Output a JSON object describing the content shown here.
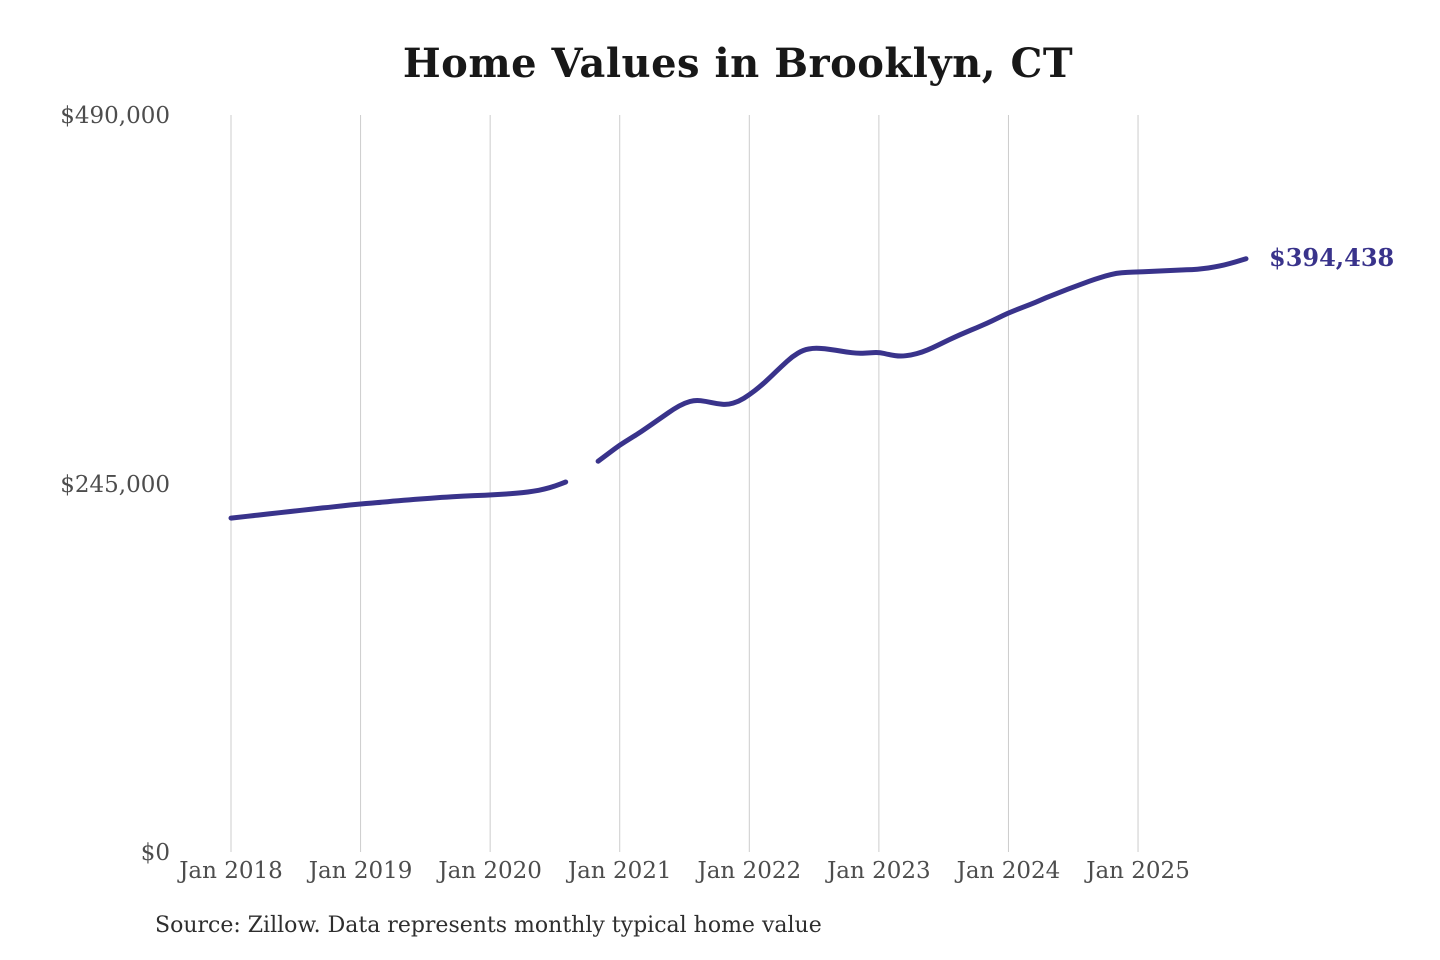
{
  "title": "Home Values in Brooklyn, CT",
  "source_note": "Source: Zillow. Data represents monthly typical home value",
  "colors": {
    "background": "#ffffff",
    "line": "#39338b",
    "grid": "#cccccc",
    "title_text": "#181818",
    "axis_text": "#4d4d4d",
    "source_text": "#2e2e2e",
    "end_label_text": "#39338b"
  },
  "chart_data": {
    "type": "line",
    "title": "Home Values in Brooklyn, CT",
    "xlabel": "",
    "ylabel": "",
    "ylim": [
      0,
      490000
    ],
    "grid": "vertical",
    "legend": "none",
    "x_ticks": [
      "Jan 2018",
      "Jan 2019",
      "Jan 2020",
      "Jan 2021",
      "Jan 2022",
      "Jan 2023",
      "Jan 2024",
      "Jan 2025"
    ],
    "y_ticks": [
      {
        "label": "$0",
        "value": 0
      },
      {
        "label": "$245,000",
        "value": 245000
      },
      {
        "label": "$490,000",
        "value": 490000
      }
    ],
    "end_label": "$394,438",
    "last_value": 394438,
    "series": [
      {
        "name": "Monthly typical home value",
        "start_month": "2018-01",
        "gap_note": "null values are unplotted months (line break around Sep-Oct 2020)",
        "values": [
          222000,
          222800,
          223600,
          224400,
          225200,
          226000,
          226800,
          227600,
          228400,
          229100,
          229900,
          230700,
          231400,
          232000,
          232600,
          233200,
          233800,
          234400,
          235000,
          235500,
          236000,
          236400,
          236800,
          237100,
          237400,
          237800,
          238300,
          238900,
          239800,
          241200,
          243200,
          246000,
          null,
          null,
          259800,
          265200,
          270600,
          275000,
          279500,
          284500,
          289500,
          294500,
          298500,
          300500,
          299600,
          298000,
          297400,
          299500,
          303900,
          309500,
          316000,
          323000,
          329500,
          333800,
          335100,
          334600,
          333600,
          332400,
          331500,
          331800,
          332300,
          330600,
          329500,
          330400,
          332300,
          335300,
          338800,
          342300,
          345400,
          348400,
          351500,
          355000,
          358400,
          361200,
          364000,
          367000,
          370000,
          372800,
          375500,
          378200,
          380800,
          383000,
          384800,
          385400,
          385700,
          386000,
          386300,
          386600,
          386900,
          387200,
          387800,
          388800,
          390300,
          392200,
          394438
        ]
      }
    ]
  }
}
